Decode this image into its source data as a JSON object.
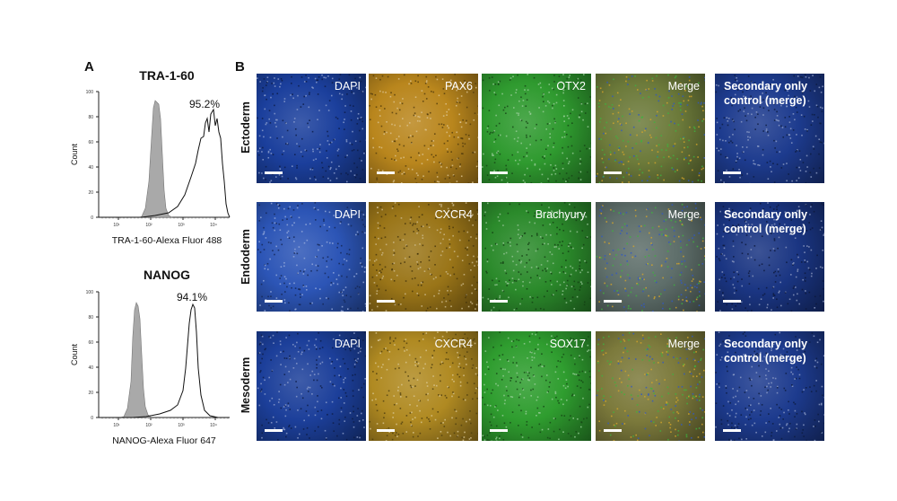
{
  "panel_a": {
    "letter": "A",
    "histograms": [
      {
        "title": "TRA-1-60",
        "percent": "95.2%",
        "ylabel": "Count",
        "xlabel": "TRA-1-60-Alexa Fluor 488",
        "yticks": [
          "0",
          "20",
          "40",
          "60",
          "80",
          "100"
        ],
        "xticks": [
          "10¹",
          "10²",
          "10³",
          "10⁴"
        ]
      },
      {
        "title": "NANOG",
        "percent": "94.1%",
        "ylabel": "Count",
        "xlabel": "NANOG-Alexa Fluor 647",
        "yticks": [
          "0",
          "20",
          "40",
          "60",
          "80",
          "100"
        ],
        "xticks": [
          "10¹",
          "10²",
          "10³",
          "10⁴"
        ]
      }
    ]
  },
  "panel_b": {
    "letter": "B",
    "rows": [
      {
        "label": "Ectoderm",
        "tiles": [
          {
            "label": "DAPI",
            "color": "#1b3f9c"
          },
          {
            "label": "PAX6",
            "color": "#b9861d"
          },
          {
            "label": "OTX2",
            "color": "#2f9a2f"
          },
          {
            "label": "Merge",
            "color": "#6c7a3a"
          },
          {
            "label": "Secondary only\ncontrol (merge)",
            "color": "#1d3b8e"
          }
        ]
      },
      {
        "label": "Endoderm",
        "tiles": [
          {
            "label": "DAPI",
            "color": "#2c55b6"
          },
          {
            "label": "CXCR4",
            "color": "#9a7518"
          },
          {
            "label": "Brachyury",
            "color": "#2b8a2b"
          },
          {
            "label": "Merge",
            "color": "#5e6e6a"
          },
          {
            "label": "Secondary only\ncontrol (merge)",
            "color": "#1a3582"
          }
        ]
      },
      {
        "label": "Mesoderm",
        "tiles": [
          {
            "label": "DAPI",
            "color": "#1c3f9a"
          },
          {
            "label": "CXCR4",
            "color": "#b08a22"
          },
          {
            "label": "SOX17",
            "color": "#2f9d2f"
          },
          {
            "label": "Merge",
            "color": "#7c7a3c"
          },
          {
            "label": "Secondary only\ncontrol (merge)",
            "color": "#1d3b8e"
          }
        ]
      }
    ]
  }
}
